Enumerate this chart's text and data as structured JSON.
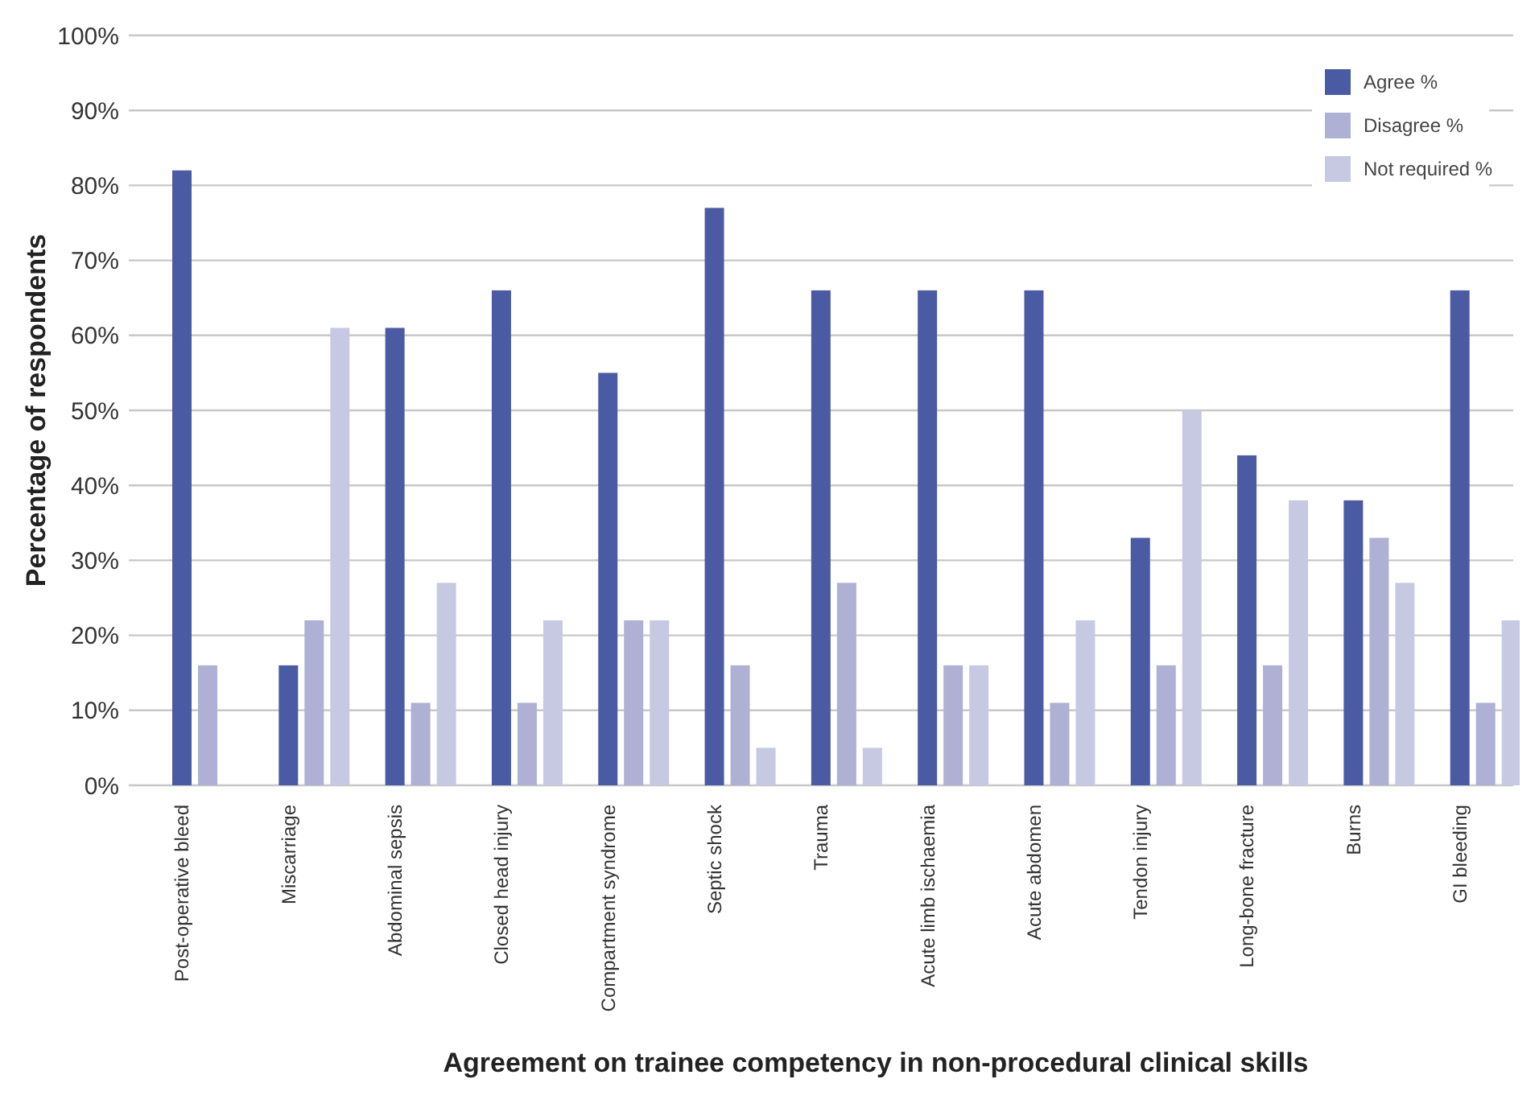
{
  "chart_data": {
    "type": "bar",
    "xlabel": "Agreement on trainee competency in non-procedural clinical skills",
    "ylabel": "Percentage of respondents",
    "categories": [
      "Post-operative bleed",
      "Miscarriage",
      "Abdominal sepsis",
      "Closed head injury",
      "Compartment syndrome",
      "Septic shock",
      "Trauma",
      "Acute limb ischaemia",
      "Acute abdomen",
      "Tendon injury",
      "Long-bone fracture",
      "Burns",
      "GI bleeding"
    ],
    "series": [
      {
        "name": "Agree %",
        "color": "#4b5ba3",
        "values": [
          82,
          16,
          61,
          66,
          55,
          77,
          66,
          66,
          66,
          33,
          44,
          38,
          66
        ]
      },
      {
        "name": "Disagree %",
        "color": "#aeb1d4",
        "values": [
          16,
          22,
          11,
          11,
          22,
          16,
          27,
          16,
          11,
          16,
          16,
          33,
          11
        ]
      },
      {
        "name": "Not required %",
        "color": "#c7c9e3",
        "values": [
          0,
          61,
          27,
          22,
          22,
          5,
          5,
          16,
          22,
          50,
          38,
          27,
          22
        ]
      }
    ],
    "ylim": [
      0,
      100
    ],
    "yticks": [
      {
        "value": 0,
        "label": "0%"
      },
      {
        "value": 10,
        "label": "10%"
      },
      {
        "value": 20,
        "label": "20%"
      },
      {
        "value": 30,
        "label": "30%"
      },
      {
        "value": 40,
        "label": "40%"
      },
      {
        "value": 50,
        "label": "50%"
      },
      {
        "value": 60,
        "label": "60%"
      },
      {
        "value": 70,
        "label": "70%"
      },
      {
        "value": 80,
        "label": "80%"
      },
      {
        "value": 90,
        "label": "90%"
      },
      {
        "value": 100,
        "label": "100%"
      }
    ],
    "grid": "y",
    "legend": "top right"
  }
}
